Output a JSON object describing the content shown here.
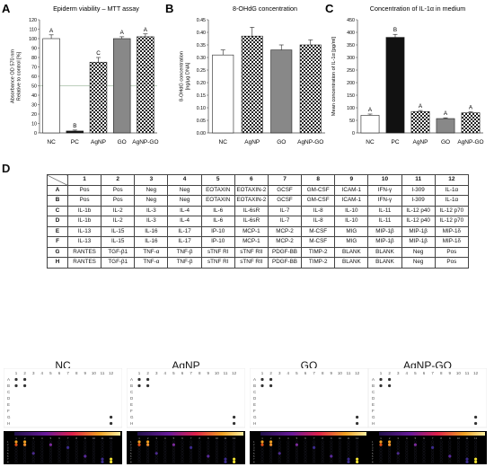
{
  "panels": {
    "A": {
      "letter": "A"
    },
    "B": {
      "letter": "B"
    },
    "C": {
      "letter": "C"
    },
    "D": {
      "letter": "D"
    }
  },
  "chart_data": [
    {
      "id": "A",
      "type": "bar",
      "title": "Epiderm viability – MTT assay",
      "ylabel": "Absorbance OD 570 nm\nRelative to control [%]",
      "categories": [
        "NC",
        "PC",
        "AgNP",
        "GO",
        "AgNP-GO"
      ],
      "values": [
        100,
        2,
        75,
        100,
        102
      ],
      "errors": [
        4,
        1,
        5,
        2,
        3
      ],
      "letters": [
        "A",
        "B",
        "C",
        "A",
        "A"
      ],
      "yticks": [
        0,
        10,
        20,
        30,
        40,
        50,
        60,
        70,
        80,
        90,
        100,
        110,
        120
      ],
      "ylim": [
        0,
        120
      ],
      "reference_line": 50,
      "colors": [
        "#ffffff",
        "#111111",
        "checker",
        "#888888",
        "checker"
      ]
    },
    {
      "id": "B",
      "type": "bar",
      "title": "8-OHdG concentration",
      "ylabel": "8-OHdG concentration\n[ng/µg DNA]",
      "categories": [
        "NC",
        "AgNP",
        "GO",
        "AgNP-GO"
      ],
      "values": [
        0.31,
        0.385,
        0.33,
        0.35
      ],
      "errors": [
        0.02,
        0.035,
        0.02,
        0.02
      ],
      "yticks": [
        0,
        0.05,
        0.1,
        0.15,
        0.2,
        0.25,
        0.3,
        0.35,
        0.4,
        0.45
      ],
      "ylim": [
        0,
        0.45
      ],
      "colors": [
        "#ffffff",
        "checker",
        "#888888",
        "checker"
      ]
    },
    {
      "id": "C",
      "type": "bar",
      "title": "Concentration of IL-1α in medium",
      "ylabel": "Mean concentration of IL-1α [pg/ml]",
      "categories": [
        "NC",
        "PC",
        "AgNP",
        "GO",
        "AgNP-GO"
      ],
      "values": [
        70,
        380,
        85,
        57,
        80
      ],
      "errors": [
        5,
        12,
        4,
        3,
        4
      ],
      "letters": [
        "A",
        "B",
        "A",
        "A",
        "A"
      ],
      "yticks": [
        0,
        50,
        100,
        150,
        200,
        250,
        300,
        350,
        400,
        450
      ],
      "ylim": [
        0,
        450
      ],
      "colors": [
        "#ffffff",
        "#111111",
        "checker",
        "#888888",
        "checker"
      ]
    }
  ],
  "table": {
    "columns": [
      "1",
      "2",
      "3",
      "4",
      "5",
      "6",
      "7",
      "8",
      "9",
      "10",
      "11",
      "12"
    ],
    "rows": [
      {
        "label": "A",
        "cells": [
          "Pos",
          "Pos",
          "Neg",
          "Neg",
          "EOTAXIN",
          "EOTAXIN-2",
          "GCSF",
          "GM-CSF",
          "ICAM-1",
          "IFN-γ",
          "I-309",
          "IL-1α"
        ]
      },
      {
        "label": "B",
        "cells": [
          "Pos",
          "Pos",
          "Neg",
          "Neg",
          "EOTAXIN",
          "EOTAXIN-2",
          "GCSF",
          "GM-CSF",
          "ICAM-1",
          "IFN-γ",
          "I-309",
          "IL-1α"
        ]
      },
      {
        "label": "C",
        "cells": [
          "IL-1b",
          "IL-2",
          "IL-3",
          "IL-4",
          "IL-6",
          "IL-6sR",
          "IL-7",
          "IL-8",
          "IL-10",
          "IL-11",
          "IL-12 p40",
          "IL-12 p70"
        ]
      },
      {
        "label": "D",
        "cells": [
          "IL-1b",
          "IL-2",
          "IL-3",
          "IL-4",
          "IL-6",
          "IL-6sR",
          "IL-7",
          "IL-8",
          "IL-10",
          "IL-11",
          "IL-12 p40",
          "IL-12 p70"
        ]
      },
      {
        "label": "E",
        "cells": [
          "IL-13",
          "IL-15",
          "IL-16",
          "IL-17",
          "IP-10",
          "MCP-1",
          "MCP-2",
          "M-CSF",
          "MIG",
          "MIP-1β",
          "MIP-1β",
          "MIP-1δ"
        ]
      },
      {
        "label": "F",
        "cells": [
          "IL-13",
          "IL-15",
          "IL-16",
          "IL-17",
          "IP-10",
          "MCP-1",
          "MCP-2",
          "M-CSF",
          "MIG",
          "MIP-1β",
          "MIP-1β",
          "MIP-1δ"
        ]
      },
      {
        "label": "G",
        "cells": [
          "RANTES",
          "TGF-β1",
          "TNF-α",
          "TNF-β",
          "sTNF RI",
          "sTNF RII",
          "PDGF-BB",
          "TIMP-2",
          "BLANK",
          "BLANK",
          "Neg",
          "Pos"
        ]
      },
      {
        "label": "H",
        "cells": [
          "RANTES",
          "TGF-β1",
          "TNF-α",
          "TNF-β",
          "sTNF RI",
          "sTNF RII",
          "PDGF-BB",
          "TIMP-2",
          "BLANK",
          "BLANK",
          "Neg",
          "Pos"
        ]
      }
    ]
  },
  "arrays": {
    "col_labels": [
      "1",
      "2",
      "3",
      "4",
      "5",
      "6",
      "7",
      "8",
      "9",
      "10",
      "11",
      "12"
    ],
    "row_labels": [
      "A",
      "B",
      "C",
      "D",
      "E",
      "F",
      "G",
      "H"
    ],
    "heat_row_labels": [
      "1",
      "2",
      "3",
      "4",
      "5",
      "6",
      "7",
      "8"
    ],
    "groups": [
      {
        "title": "NC"
      },
      {
        "title": "AgNP"
      },
      {
        "title": "GO"
      },
      {
        "title": "AgNP-GO"
      }
    ]
  }
}
